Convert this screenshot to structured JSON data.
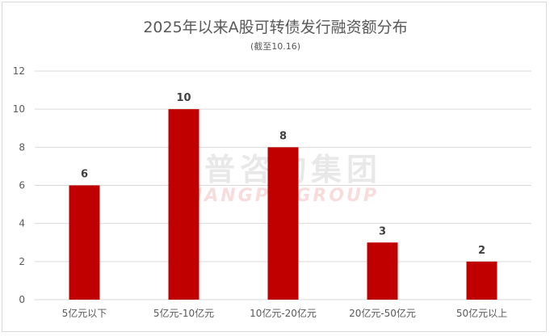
{
  "chart_data": {
    "type": "bar",
    "title": "2025年以来A股可转债发行融资额分布",
    "subtitle": "(截至10.16)",
    "categories": [
      "5亿元以下",
      "5亿元-10亿元",
      "10亿元-20亿元",
      "20亿元-50亿元",
      "50亿元以上"
    ],
    "values": [
      6,
      10,
      8,
      3,
      2
    ],
    "data_labels": [
      "6",
      "10",
      "8",
      "3",
      "2"
    ],
    "y_ticks": [
      "0",
      "2",
      "4",
      "6",
      "8",
      "10",
      "12"
    ],
    "ylim": [
      0,
      12
    ],
    "grid": true,
    "bar_color": "#c00000",
    "watermark": {
      "cn": "尚普咨询集团",
      "en": "SHANGPU GROUP"
    }
  }
}
